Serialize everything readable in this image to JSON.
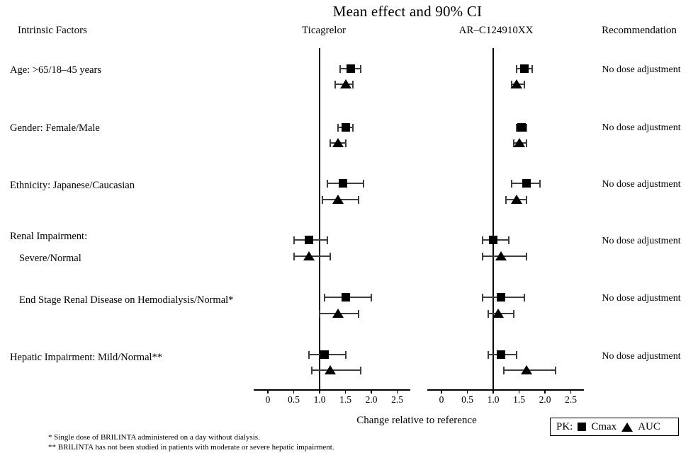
{
  "headers": {
    "intrinsic_factors": "Intrinsic Factors",
    "recommendation": "Recommendation"
  },
  "legend": {
    "prefix": "PK:",
    "cmax": "Cmax",
    "auc": "AUC"
  },
  "footnotes": [
    "* Single dose of BRILINTA administered on a day without dialysis.",
    "** BRILINTA has not been studied in patients with moderate or severe hepatic impairment."
  ],
  "colors": {
    "background": "#ffffff",
    "text": "#000000",
    "marker": "#000000",
    "ci_line": "#3d3d3d",
    "axis": "#000000"
  },
  "chart_data": {
    "type": "scatter",
    "variant": "forest_plot_with_90pct_CI_error_bars",
    "title": "Mean effect and 90% CI",
    "xlabel": "Change relative to reference",
    "x_tick_labels": [
      "0",
      "0.5",
      "1.0",
      "1.5",
      "2.0",
      "2.5"
    ],
    "x_tick_values": [
      0,
      0.5,
      1.0,
      1.5,
      2.0,
      2.5
    ],
    "xlim": [
      -0.28,
      2.75
    ],
    "reference_line_x": 1.0,
    "grid": false,
    "legend_position": "bottom-right",
    "panels": [
      {
        "name": "Ticagrelor",
        "key": "ticagrelor"
      },
      {
        "name": "AR–C124910XX",
        "key": "ar_c124910xx"
      }
    ],
    "series_markers": {
      "cmax": "filled-square",
      "auc": "filled-triangle"
    },
    "rows": [
      {
        "label": "Age: >65/18–45 years",
        "indent": false,
        "recommendation": "No dose adjustment",
        "ticagrelor": {
          "cmax": {
            "est": 1.6,
            "lo": 1.4,
            "hi": 1.8
          },
          "auc": {
            "est": 1.5,
            "lo": 1.3,
            "hi": 1.65
          }
        },
        "ar_c124910xx": {
          "cmax": {
            "est": 1.6,
            "lo": 1.45,
            "hi": 1.75
          },
          "auc": {
            "est": 1.45,
            "lo": 1.35,
            "hi": 1.6
          }
        }
      },
      {
        "label": "Gender: Female/Male",
        "indent": false,
        "recommendation": "No dose adjustment",
        "ticagrelor": {
          "cmax": {
            "est": 1.5,
            "lo": 1.35,
            "hi": 1.65
          },
          "auc": {
            "est": 1.35,
            "lo": 1.2,
            "hi": 1.5
          }
        },
        "ar_c124910xx": {
          "cmax": {
            "est": 1.55,
            "lo": 1.45,
            "hi": 1.65
          },
          "auc": {
            "est": 1.5,
            "lo": 1.4,
            "hi": 1.65
          }
        }
      },
      {
        "label": "Ethnicity: Japanese/Caucasian",
        "indent": false,
        "recommendation": "No dose adjustment",
        "ticagrelor": {
          "cmax": {
            "est": 1.45,
            "lo": 1.15,
            "hi": 1.85
          },
          "auc": {
            "est": 1.35,
            "lo": 1.05,
            "hi": 1.75
          }
        },
        "ar_c124910xx": {
          "cmax": {
            "est": 1.65,
            "lo": 1.35,
            "hi": 1.9
          },
          "auc": {
            "est": 1.45,
            "lo": 1.25,
            "hi": 1.65
          }
        }
      },
      {
        "label": "Renal Impairment:",
        "sublabel": "Severe/Normal",
        "indent": false,
        "recommendation": "No dose adjustment",
        "ticagrelor": {
          "cmax": {
            "est": 0.8,
            "lo": 0.5,
            "hi": 1.15
          },
          "auc": {
            "est": 0.8,
            "lo": 0.5,
            "hi": 1.2
          }
        },
        "ar_c124910xx": {
          "cmax": {
            "est": 1.0,
            "lo": 0.8,
            "hi": 1.3
          },
          "auc": {
            "est": 1.15,
            "lo": 0.8,
            "hi": 1.65
          }
        }
      },
      {
        "label": "End Stage Renal Disease on Hemodialysis/Normal*",
        "indent": true,
        "recommendation": "No dose adjustment",
        "ticagrelor": {
          "cmax": {
            "est": 1.5,
            "lo": 1.1,
            "hi": 2.0
          },
          "auc": {
            "est": 1.35,
            "lo": 1.0,
            "hi": 1.75
          }
        },
        "ar_c124910xx": {
          "cmax": {
            "est": 1.15,
            "lo": 0.8,
            "hi": 1.6
          },
          "auc": {
            "est": 1.1,
            "lo": 0.9,
            "hi": 1.4
          }
        }
      },
      {
        "label": "Hepatic Impairment: Mild/Normal**",
        "indent": false,
        "recommendation": "No dose adjustment",
        "ticagrelor": {
          "cmax": {
            "est": 1.1,
            "lo": 0.8,
            "hi": 1.5
          },
          "auc": {
            "est": 1.2,
            "lo": 0.85,
            "hi": 1.8
          }
        },
        "ar_c124910xx": {
          "cmax": {
            "est": 1.15,
            "lo": 0.9,
            "hi": 1.45
          },
          "auc": {
            "est": 1.65,
            "lo": 1.2,
            "hi": 2.2
          }
        }
      }
    ]
  }
}
